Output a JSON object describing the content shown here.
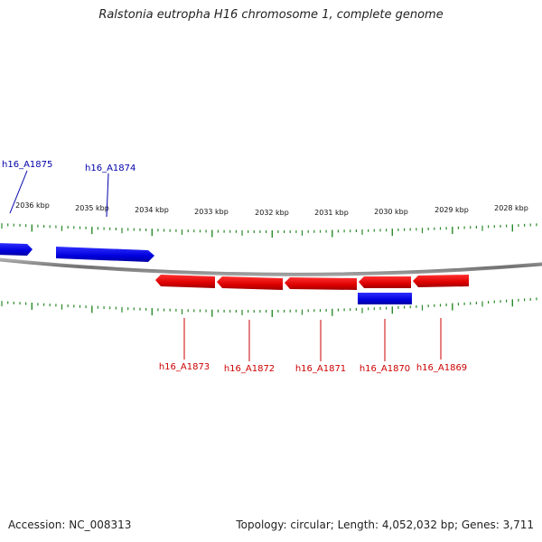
{
  "title": "Ralstonia eutropha H16 chromosome 1, complete genome",
  "footer": {
    "accession": "Accession: NC_008313",
    "summary": "Topology: circular; Length: 4,052,032 bp; Genes: 3,711"
  },
  "scale": {
    "unit": "kbp",
    "ticks": [
      "2036 kbp",
      "2035 kbp",
      "2034 kbp",
      "2033 kbp",
      "2032 kbp",
      "2031 kbp",
      "2030 kbp",
      "2029 kbp",
      "2028 kbp"
    ]
  },
  "genes": [
    {
      "id": "h16_A1875",
      "strand": "forward",
      "color": "#0000cc"
    },
    {
      "id": "h16_A1874",
      "strand": "forward",
      "color": "#0000cc"
    },
    {
      "id": "h16_A1873",
      "strand": "reverse",
      "color": "#cc0000"
    },
    {
      "id": "h16_A1872",
      "strand": "reverse",
      "color": "#cc0000"
    },
    {
      "id": "h16_A1871",
      "strand": "reverse",
      "color": "#cc0000"
    },
    {
      "id": "h16_A1870",
      "strand": "reverse",
      "color": "#cc0000"
    },
    {
      "id": "h16_A1869",
      "strand": "reverse",
      "color": "#cc0000"
    }
  ],
  "colors": {
    "forward": "#0000dd",
    "reverse": "#dd0000",
    "tick": "#2a8a2a",
    "backbone": "#808080"
  }
}
